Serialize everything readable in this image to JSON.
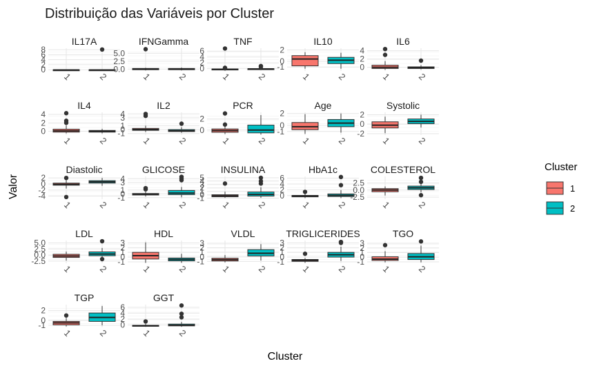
{
  "chart_data": {
    "type": "boxplot",
    "title": "Distribuição das Variáveis por Cluster",
    "xlabel": "Cluster",
    "ylabel": "Valor",
    "legend": {
      "title": "Cluster",
      "placement": "right",
      "entries": [
        "1",
        "2"
      ]
    },
    "categories": [
      "1",
      "2"
    ],
    "colors": {
      "1": "#F8766D",
      "2": "#00BFC4"
    },
    "panels": [
      {
        "name": "IL17A",
        "ylim": [
          -0.5,
          8.6
        ],
        "yticks": [
          "0",
          "2",
          "4",
          "6",
          "8"
        ],
        "boxes": [
          {
            "q1": -0.2,
            "median": -0.1,
            "q3": 0.0,
            "lo": -0.3,
            "hi": 0.1,
            "outliers": []
          },
          {
            "q1": -0.2,
            "median": -0.1,
            "q3": 0.0,
            "lo": -0.3,
            "hi": 0.1,
            "outliers": [
              8.1
            ]
          }
        ]
      },
      {
        "name": "IFNGamma",
        "ylim": [
          -0.6,
          6.6
        ],
        "yticks": [
          "0.0",
          "2.5",
          "5.0"
        ],
        "boxes": [
          {
            "q1": -0.2,
            "median": 0.0,
            "q3": 0.2,
            "lo": -0.4,
            "hi": 0.4,
            "outliers": [
              6.3
            ]
          },
          {
            "q1": -0.2,
            "median": 0.0,
            "q3": 0.2,
            "lo": -0.4,
            "hi": 0.5,
            "outliers": []
          }
        ]
      },
      {
        "name": "TNF",
        "ylim": [
          -0.8,
          7.0
        ],
        "yticks": [
          "0",
          "2",
          "4",
          "6"
        ],
        "boxes": [
          {
            "q1": -0.3,
            "median": -0.2,
            "q3": -0.1,
            "lo": -0.5,
            "hi": 0.1,
            "outliers": [
              6.9,
              0.3,
              0.1
            ]
          },
          {
            "q1": -0.2,
            "median": -0.1,
            "q3": 0.0,
            "lo": -0.4,
            "hi": 0.2,
            "outliers": [
              0.9,
              0.6
            ]
          }
        ]
      },
      {
        "name": "IL10",
        "ylim": [
          -1.7,
          2.3
        ],
        "yticks": [
          "2",
          "0",
          "-1"
        ],
        "boxes": [
          {
            "q1": -0.8,
            "median": 0.4,
            "q3": 1.0,
            "lo": -1.3,
            "hi": 1.6,
            "outliers": []
          },
          {
            "q1": -0.4,
            "median": 0.2,
            "q3": 0.7,
            "lo": -1.3,
            "hi": 1.5,
            "outliers": []
          }
        ]
      },
      {
        "name": "IL6",
        "ylim": [
          -0.9,
          4.6
        ],
        "yticks": [
          "0",
          "2",
          "4"
        ],
        "boxes": [
          {
            "q1": -0.3,
            "median": 0.0,
            "q3": 0.5,
            "lo": -0.6,
            "hi": 1.5,
            "outliers": [
              4.4,
              3.0
            ]
          },
          {
            "q1": -0.3,
            "median": -0.1,
            "q3": 0.1,
            "lo": -0.5,
            "hi": 0.5,
            "outliers": [
              1.6
            ]
          }
        ]
      },
      {
        "name": "IL4",
        "ylim": [
          -0.9,
          4.5
        ],
        "yticks": [
          "0",
          "2",
          "4"
        ],
        "boxes": [
          {
            "q1": -0.2,
            "median": 0.1,
            "q3": 0.5,
            "lo": -0.5,
            "hi": 1.4,
            "outliers": [
              4.3,
              2.5,
              2.0
            ]
          },
          {
            "q1": -0.2,
            "median": 0.0,
            "q3": 0.2,
            "lo": -0.5,
            "hi": 0.6,
            "outliers": []
          }
        ]
      },
      {
        "name": "IL2",
        "ylim": [
          -1.4,
          4.4
        ],
        "yticks": [
          "4",
          "3",
          "1",
          "0",
          "-1"
        ],
        "boxes": [
          {
            "q1": -0.2,
            "median": 0.0,
            "q3": 0.3,
            "lo": -0.6,
            "hi": 1.0,
            "outliers": [
              4.0,
              3.5
            ]
          },
          {
            "q1": -0.5,
            "median": -0.3,
            "q3": 0.0,
            "lo": -0.8,
            "hi": 0.6,
            "outliers": [
              1.5
            ]
          }
        ]
      },
      {
        "name": "PCR",
        "ylim": [
          -0.9,
          3.2
        ],
        "yticks": [
          "2",
          "0"
        ],
        "boxes": [
          {
            "q1": -0.4,
            "median": -0.1,
            "q3": 0.2,
            "lo": -0.7,
            "hi": 0.8,
            "outliers": [
              3.0,
              1.0
            ]
          },
          {
            "q1": -0.5,
            "median": 0.0,
            "q3": 0.9,
            "lo": -0.8,
            "hi": 2.7,
            "outliers": []
          }
        ]
      },
      {
        "name": "Age",
        "ylim": [
          -1.6,
          2.2
        ],
        "yticks": [
          "2",
          "0",
          "-1"
        ],
        "boxes": [
          {
            "q1": -0.7,
            "median": -0.2,
            "q3": 0.5,
            "lo": -1.4,
            "hi": 1.9,
            "outliers": []
          },
          {
            "q1": -0.2,
            "median": 0.4,
            "q3": 1.0,
            "lo": -1.2,
            "hi": 2.0,
            "outliers": []
          }
        ]
      },
      {
        "name": "Systolic",
        "ylim": [
          -2.3,
          2.5
        ],
        "yticks": [
          "2",
          "0",
          "-2"
        ],
        "boxes": [
          {
            "q1": -0.8,
            "median": -0.2,
            "q3": 0.5,
            "lo": -1.9,
            "hi": 1.6,
            "outliers": []
          },
          {
            "q1": 0.1,
            "median": 0.6,
            "q3": 1.1,
            "lo": -0.7,
            "hi": 2.0,
            "outliers": []
          }
        ]
      },
      {
        "name": "Diastolic",
        "ylim": [
          -5.0,
          2.5
        ],
        "yticks": [
          "2",
          "0",
          "-2",
          "-4"
        ],
        "boxes": [
          {
            "q1": -0.4,
            "median": -0.1,
            "q3": 0.3,
            "lo": -1.5,
            "hi": 1.3,
            "outliers": [
              2.0,
              -4.3
            ]
          },
          {
            "q1": 0.3,
            "median": 0.7,
            "q3": 1.1,
            "lo": -0.6,
            "hi": 2.0,
            "outliers": []
          }
        ]
      },
      {
        "name": "GLICOSE",
        "ylim": [
          -1.4,
          4.6
        ],
        "yticks": [
          "4",
          "3",
          "1",
          "0",
          "-1"
        ],
        "boxes": [
          {
            "q1": -0.3,
            "median": -0.1,
            "q3": 0.1,
            "lo": -0.7,
            "hi": 0.6,
            "outliers": [
              1.5,
              1.2
            ]
          },
          {
            "q1": -0.2,
            "median": 0.2,
            "q3": 0.9,
            "lo": -0.9,
            "hi": 1.8,
            "outliers": [
              4.5,
              4.1,
              3.6
            ]
          }
        ]
      },
      {
        "name": "INSULINA",
        "ylim": [
          -1.3,
          5.4
        ],
        "yticks": [
          "5",
          "4",
          "3",
          "2",
          "1",
          "0",
          "-1"
        ],
        "boxes": [
          {
            "q1": -0.6,
            "median": -0.3,
            "q3": 0.0,
            "lo": -0.9,
            "hi": 0.9,
            "outliers": [
              3.3
            ]
          },
          {
            "q1": -0.4,
            "median": 0.1,
            "q3": 0.8,
            "lo": -0.9,
            "hi": 2.2,
            "outliers": [
              5.0,
              4.0,
              3.3
            ]
          }
        ]
      },
      {
        "name": "HbA1c",
        "ylim": [
          -1.2,
          6.6
        ],
        "yticks": [
          "6",
          "4",
          "2",
          "0"
        ],
        "boxes": [
          {
            "q1": -0.4,
            "median": -0.2,
            "q3": 0.1,
            "lo": -0.8,
            "hi": 0.6,
            "outliers": [
              1.3
            ]
          },
          {
            "q1": -0.3,
            "median": 0.1,
            "q3": 0.6,
            "lo": -0.8,
            "hi": 1.9,
            "outliers": [
              6.4,
              3.6
            ]
          }
        ]
      },
      {
        "name": "COLESTEROL",
        "ylim": [
          -3.2,
          4.8
        ],
        "yticks": [
          "2.5",
          "0.0",
          "-2.5"
        ],
        "boxes": [
          {
            "q1": -0.6,
            "median": 0.0,
            "q3": 0.5,
            "lo": -1.9,
            "hi": 1.3,
            "outliers": []
          },
          {
            "q1": 0.2,
            "median": 0.8,
            "q3": 1.4,
            "lo": -0.8,
            "hi": 2.8,
            "outliers": [
              4.3,
              2.9,
              -1.8
            ]
          }
        ]
      },
      {
        "name": "LDL",
        "ylim": [
          -3.4,
          6.0
        ],
        "yticks": [
          "5.0",
          "2.5",
          "0.0",
          "-2.5"
        ],
        "boxes": [
          {
            "q1": -1.0,
            "median": -0.4,
            "q3": 0.3,
            "lo": -2.3,
            "hi": 1.4,
            "outliers": []
          },
          {
            "q1": -0.3,
            "median": 0.4,
            "q3": 1.3,
            "lo": -1.4,
            "hi": 2.9,
            "outliers": [
              5.7,
              -1.7
            ]
          }
        ]
      },
      {
        "name": "HDL",
        "ylim": [
          -1.3,
          3.5
        ],
        "yticks": [
          "3",
          "2",
          "1",
          "0",
          "-1"
        ],
        "boxes": [
          {
            "q1": -0.4,
            "median": 0.3,
            "q3": 1.0,
            "lo": -1.2,
            "hi": 3.1,
            "outliers": []
          },
          {
            "q1": -0.8,
            "median": -0.5,
            "q3": -0.2,
            "lo": -1.2,
            "hi": 0.7,
            "outliers": []
          }
        ]
      },
      {
        "name": "VLDL",
        "ylim": [
          -1.4,
          3.6
        ],
        "yticks": [
          "3",
          "2",
          "1",
          "0",
          "-1"
        ],
        "boxes": [
          {
            "q1": -0.9,
            "median": -0.6,
            "q3": -0.3,
            "lo": -1.2,
            "hi": 0.4,
            "outliers": []
          },
          {
            "q1": 0.2,
            "median": 0.8,
            "q3": 1.6,
            "lo": -0.8,
            "hi": 2.8,
            "outliers": []
          }
        ]
      },
      {
        "name": "TRIGLICERIDES",
        "ylim": [
          -1.3,
          3.5
        ],
        "yticks": [
          "3",
          "2",
          "1",
          "0",
          "-1"
        ],
        "boxes": [
          {
            "q1": -0.9,
            "median": -0.7,
            "q3": -0.5,
            "lo": -1.2,
            "hi": -0.2,
            "outliers": [
              0.7
            ]
          },
          {
            "q1": 0.0,
            "median": 0.5,
            "q3": 1.0,
            "lo": -0.8,
            "hi": 2.2,
            "outliers": [
              3.2,
              3.0
            ]
          }
        ]
      },
      {
        "name": "TGO",
        "ylim": [
          -1.3,
          3.6
        ],
        "yticks": [
          "3",
          "2",
          "1",
          "0",
          "-1"
        ],
        "boxes": [
          {
            "q1": -0.7,
            "median": -0.4,
            "q3": 0.1,
            "lo": -1.1,
            "hi": 1.3,
            "outliers": [
              2.6
            ]
          },
          {
            "q1": -0.5,
            "median": 0.1,
            "q3": 0.8,
            "lo": -1.1,
            "hi": 2.5,
            "outliers": [
              3.4
            ]
          }
        ]
      },
      {
        "name": "TGP",
        "ylim": [
          -1.4,
          3.2
        ],
        "yticks": [
          "2",
          "0",
          "-1"
        ],
        "boxes": [
          {
            "q1": -0.9,
            "median": -0.5,
            "q3": -0.2,
            "lo": -1.2,
            "hi": 0.5,
            "outliers": [
              1.0
            ]
          },
          {
            "q1": -0.2,
            "median": 0.6,
            "q3": 1.5,
            "lo": -1.0,
            "hi": 2.9,
            "outliers": []
          }
        ]
      },
      {
        "name": "GGT",
        "ylim": [
          -0.8,
          6.9
        ],
        "yticks": [
          "6",
          "4",
          "2",
          "0"
        ],
        "boxes": [
          {
            "q1": -0.4,
            "median": -0.3,
            "q3": -0.1,
            "lo": -0.6,
            "hi": 0.4,
            "outliers": [
              1.2
            ]
          },
          {
            "q1": -0.3,
            "median": -0.1,
            "q3": 0.3,
            "lo": -0.6,
            "hi": 1.0,
            "outliers": [
              6.6,
              3.8,
              2.6
            ]
          }
        ]
      }
    ]
  }
}
